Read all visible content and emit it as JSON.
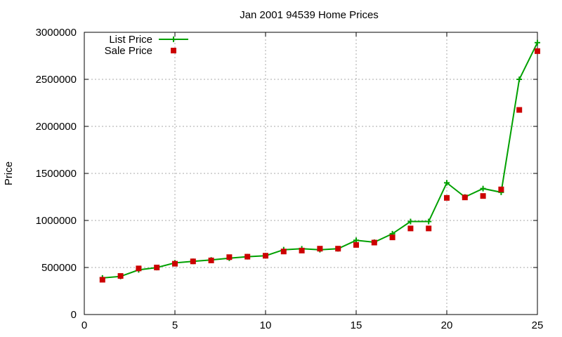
{
  "chart_data": {
    "type": "line",
    "title": "Jan 2001 94539 Home Prices",
    "xlabel": "",
    "ylabel": "Price",
    "xlim": [
      0,
      25
    ],
    "ylim": [
      0,
      3000000
    ],
    "xticks": [
      0,
      5,
      10,
      15,
      20,
      25
    ],
    "yticks": [
      0,
      500000,
      1000000,
      1500000,
      2000000,
      2500000,
      3000000
    ],
    "xtick_labels": [
      "0",
      "5",
      "10",
      "15",
      "20",
      "25"
    ],
    "ytick_labels": [
      "0",
      "500000",
      "1000000",
      "1500000",
      "2000000",
      "2500000",
      "3000000"
    ],
    "grid": true,
    "legend_position": "top-left",
    "series": [
      {
        "name": "List Price",
        "style": "line+cross",
        "color": "#00a000",
        "x": [
          1,
          2,
          3,
          4,
          5,
          6,
          7,
          8,
          9,
          10,
          11,
          12,
          13,
          14,
          15,
          16,
          17,
          18,
          19,
          20,
          21,
          22,
          23,
          24,
          25
        ],
        "values": [
          389000,
          405000,
          475000,
          499000,
          549000,
          565000,
          580000,
          599000,
          615000,
          625000,
          689000,
          699000,
          689000,
          699000,
          789000,
          769000,
          859000,
          989000,
          989000,
          1400000,
          1249000,
          1339000,
          1299000,
          2500000,
          2890000
        ]
      },
      {
        "name": "Sale Price",
        "style": "square",
        "color": "#cc0000",
        "x": [
          1,
          2,
          3,
          4,
          5,
          6,
          7,
          8,
          9,
          10,
          11,
          12,
          13,
          14,
          15,
          16,
          17,
          18,
          19,
          20,
          21,
          22,
          23,
          24,
          25
        ],
        "values": [
          370000,
          410000,
          490000,
          500000,
          540000,
          565000,
          575000,
          610000,
          615000,
          625000,
          670000,
          680000,
          700000,
          700000,
          740000,
          765000,
          820000,
          915000,
          915000,
          1240000,
          1245000,
          1260000,
          1330000,
          2175000,
          2800000
        ]
      }
    ]
  }
}
